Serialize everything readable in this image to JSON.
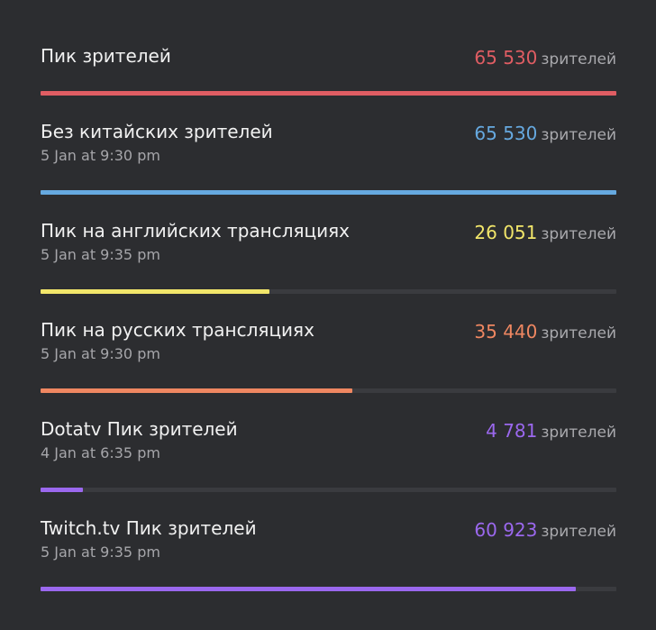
{
  "unit_label": "зрителей",
  "rows": [
    {
      "title": "Пик зрителей",
      "date": "",
      "count": "65 530",
      "progress": 1.0,
      "color": "#e05d63"
    },
    {
      "title": "Без китайских зрителей",
      "date": "5 Jan at 9:30 pm",
      "count": "65 530",
      "progress": 1.0,
      "color": "#66a9e0"
    },
    {
      "title": "Пик на английских трансляциях",
      "date": "5 Jan at 9:35 pm",
      "count": "26 051",
      "progress": 0.398,
      "color": "#f2e66a"
    },
    {
      "title": "Пик на русских трансляциях",
      "date": "5 Jan at 9:30 pm",
      "count": "35 440",
      "progress": 0.541,
      "color": "#ef8761"
    },
    {
      "title": "Dotatv Пик зрителей",
      "date": "4 Jan at 6:35 pm",
      "count": "4 781",
      "progress": 0.073,
      "color": "#9b68ee"
    },
    {
      "title": "Twitch.tv Пик зрителей",
      "date": "5 Jan at 9:35 pm",
      "count": "60 923",
      "progress": 0.93,
      "color": "#9b68ee"
    }
  ]
}
